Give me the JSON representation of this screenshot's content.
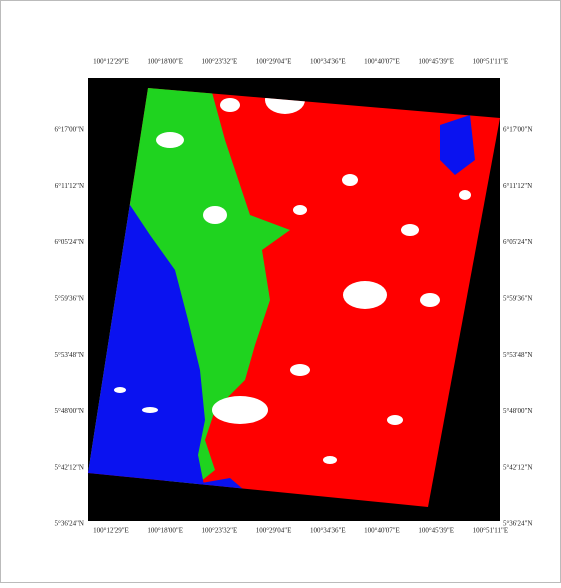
{
  "map": {
    "lon_labels": [
      "100°12'29\"E",
      "100°18'00\"E",
      "100°23'32\"E",
      "100°29'04\"E",
      "100°34'36\"E",
      "100°40'07\"E",
      "100°45'39\"E",
      "100°51'11\"E"
    ],
    "lat_labels": [
      "6°17'00\"N",
      "6°11'12\"N",
      "6°05'24\"N",
      "5°59'36\"N",
      "5°53'48\"N",
      "5°48'00\"N",
      "5°42'12\"N",
      "5°36'24\"N"
    ]
  }
}
